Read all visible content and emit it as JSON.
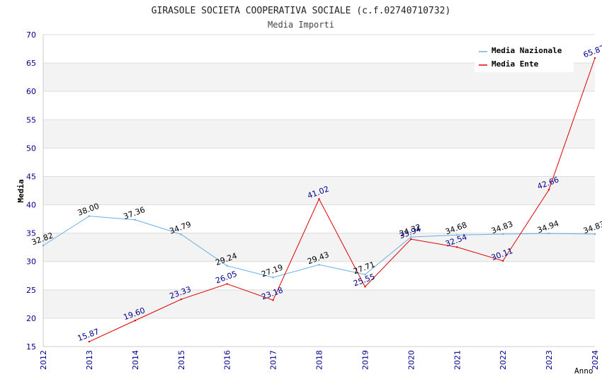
{
  "chart_data": {
    "type": "line",
    "title": "GIRASOLE SOCIETA COOPERATIVA SOCIALE (c.f.02740710732)",
    "subtitle": "Media Importi",
    "xlabel": "Anno",
    "ylabel": "Media",
    "ylim": [
      15,
      70
    ],
    "yticks": [
      "15",
      "20",
      "25",
      "30",
      "35",
      "40",
      "45",
      "50",
      "55",
      "60",
      "65",
      "70"
    ],
    "x": [
      "2012",
      "2013",
      "2014",
      "2015",
      "2016",
      "2017",
      "2018",
      "2019",
      "2020",
      "2021",
      "2022",
      "2023",
      "2024"
    ],
    "grid": true,
    "legend_position": "top-right",
    "series": [
      {
        "name": "Media Nazionale",
        "color": "#6aaee8",
        "label_color": "#000000",
        "values": [
          32.82,
          38.0,
          37.36,
          34.79,
          29.24,
          27.19,
          29.43,
          27.71,
          34.32,
          34.68,
          34.83,
          34.94,
          34.83
        ],
        "labels": [
          "32.82",
          "38.00",
          "37.36",
          "34.79",
          "29.24",
          "27.19",
          "29.43",
          "27.71",
          "34.32",
          "34.68",
          "34.83",
          "34.94",
          "34.83"
        ]
      },
      {
        "name": "Media Ente",
        "color": "#dd0000",
        "label_color": "#00008b",
        "values": [
          null,
          15.87,
          19.6,
          23.33,
          26.05,
          23.18,
          41.02,
          25.55,
          33.94,
          32.54,
          30.11,
          42.66,
          65.87
        ],
        "labels": [
          "",
          "15.87",
          "19.60",
          "23.33",
          "26.05",
          "23.18",
          "41.02",
          "25.55",
          "33.94",
          "32.54",
          "30.11",
          "42.66",
          "65.87"
        ]
      }
    ]
  }
}
